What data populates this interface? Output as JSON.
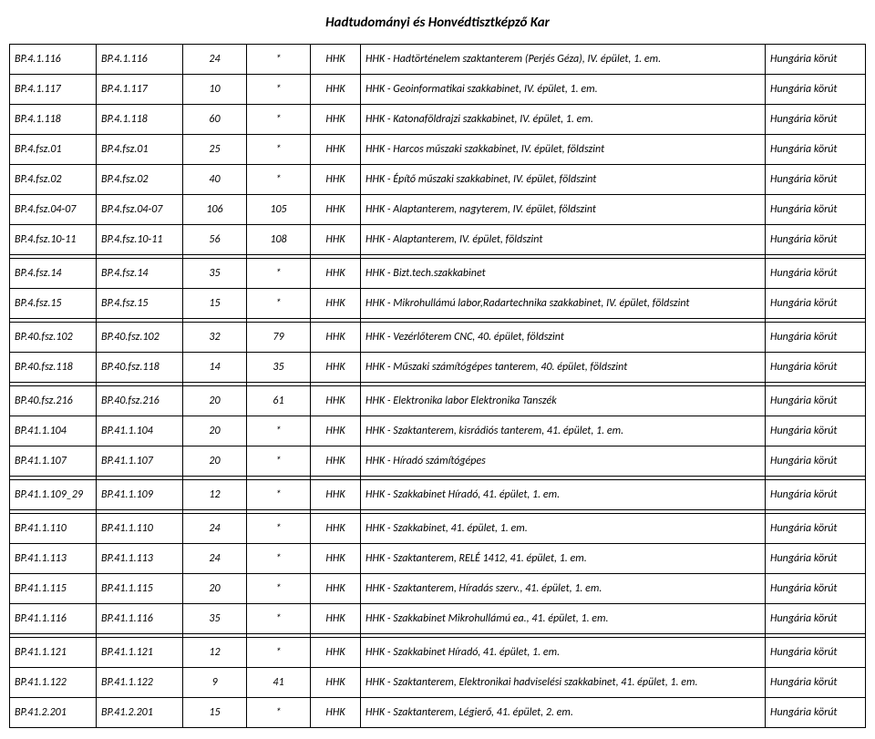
{
  "title": "Hadtudományi és Honvédtisztképző Kar",
  "columns": [
    {
      "key": "c0",
      "class": "col0"
    },
    {
      "key": "c1",
      "class": "col1"
    },
    {
      "key": "c2",
      "class": "col2"
    },
    {
      "key": "c3",
      "class": "col3"
    },
    {
      "key": "c4",
      "class": "col4"
    },
    {
      "key": "c5",
      "class": "col5"
    },
    {
      "key": "c6",
      "class": "col6"
    }
  ],
  "groups": [
    [
      [
        "BP.4.1.116",
        "BP.4.1.116",
        "24",
        "*",
        "HHK",
        "HHK - Hadtörténelem szaktanterem (Perjés Géza), IV. épület, 1. em.",
        "Hungária körút"
      ],
      [
        "BP.4.1.117",
        "BP.4.1.117",
        "10",
        "*",
        "HHK",
        "HHK - Geoinformatikai szakkabinet, IV. épület, 1. em.",
        "Hungária körút"
      ],
      [
        "BP.4.1.118",
        "BP.4.1.118",
        "60",
        "*",
        "HHK",
        "HHK - Katonaföldrajzi szakkabinet, IV. épület, 1. em.",
        "Hungária körút"
      ],
      [
        "BP.4.fsz.01",
        "BP.4.fsz.01",
        "25",
        "*",
        "HHK",
        "HHK - Harcos műszaki szakkabinet, IV. épület, földszint",
        "Hungária körút"
      ],
      [
        "BP.4.fsz.02",
        "BP.4.fsz.02",
        "40",
        "*",
        "HHK",
        "HHK - Építő műszaki szakkabinet, IV. épület, földszint",
        "Hungária körút"
      ],
      [
        "BP.4.fsz.04-07",
        "BP.4.fsz.04-07",
        "106",
        "105",
        "HHK",
        "HHK - Alaptanterem, nagyterem, IV. épület, földszint",
        "Hungária körút"
      ],
      [
        "BP.4.fsz.10-11",
        "BP.4.fsz.10-11",
        "56",
        "108",
        "HHK",
        "HHK - Alaptanterem, IV. épület, földszint",
        "Hungária körút"
      ]
    ],
    [
      [
        "BP.4.fsz.14",
        "BP.4.fsz.14",
        "35",
        "*",
        "HHK",
        "HHK - Bizt.tech.szakkabinet",
        "Hungária körút"
      ],
      [
        "BP.4.fsz.15",
        "BP.4.fsz.15",
        "15",
        "*",
        "HHK",
        "HHK - Mikrohullámú labor,Radartechnika szakkabinet, IV. épület, földszint",
        "Hungária körút"
      ]
    ],
    [
      [
        "BP.40.fsz.102",
        "BP.40.fsz.102",
        "32",
        "79",
        "HHK",
        "HHK - Vezérlőterem CNC, 40. épület, földszint",
        "Hungária körút"
      ],
      [
        "BP.40.fsz.118",
        "BP.40.fsz.118",
        "14",
        "35",
        "HHK",
        "HHK - Műszaki számítógépes tanterem, 40. épület, földszint",
        "Hungária körút"
      ]
    ],
    [
      [
        "BP.40.fsz.216",
        "BP.40.fsz.216",
        "20",
        "61",
        "HHK",
        "HHK - Elektronika labor Elektronika Tanszék",
        "Hungária körút"
      ],
      [
        "BP.41.1.104",
        "BP.41.1.104",
        "20",
        "*",
        "HHK",
        "HHK - Szaktanterem, kisrádiós tanterem, 41. épület, 1. em.",
        "Hungária körút"
      ],
      [
        "BP.41.1.107",
        "BP.41.1.107",
        "20",
        "*",
        "HHK",
        "HHK - Híradó számítógépes",
        "Hungária körút"
      ]
    ],
    [
      [
        "BP.41.1.109_29",
        "BP.41.1.109",
        "12",
        "*",
        "HHK",
        "HHK - Szakkabinet Híradó, 41. épület, 1. em.",
        "Hungária körút"
      ]
    ],
    [
      [
        "BP.41.1.110",
        "BP.41.1.110",
        "24",
        "*",
        "HHK",
        "HHK - Szakkabinet, 41. épület, 1. em.",
        "Hungária körút"
      ],
      [
        "BP.41.1.113",
        "BP.41.1.113",
        "24",
        "*",
        "HHK",
        "HHK - Szaktanterem, RELÉ 1412, 41. épület, 1. em.",
        "Hungária körút"
      ],
      [
        "BP.41.1.115",
        "BP.41.1.115",
        "20",
        "*",
        "HHK",
        "HHK - Szaktanterem, Híradás szerv., 41. épület, 1. em.",
        "Hungária körút"
      ],
      [
        "BP.41.1.116",
        "BP.41.1.116",
        "35",
        "*",
        "HHK",
        "HHK - Szakkabinet Mikrohullámú ea., 41. épület, 1. em.",
        "Hungária körút"
      ]
    ],
    [
      [
        "BP.41.1.121",
        "BP.41.1.121",
        "12",
        "*",
        "HHK",
        "HHK - Szakkabinet Híradó, 41. épület, 1. em.",
        "Hungária körút"
      ],
      [
        "BP.41.1.122",
        "BP.41.1.122",
        "9",
        "41",
        "HHK",
        "HHK - Szaktanterem, Elektronikai hadviselési szakkabinet, 41. épület, 1. em.",
        "Hungária körút"
      ],
      [
        "BP.41.2.201",
        "BP.41.2.201",
        "15",
        "*",
        "HHK",
        "HHK - Szaktanterem, Légierő, 41. épület, 2. em.",
        "Hungária körút"
      ]
    ]
  ]
}
